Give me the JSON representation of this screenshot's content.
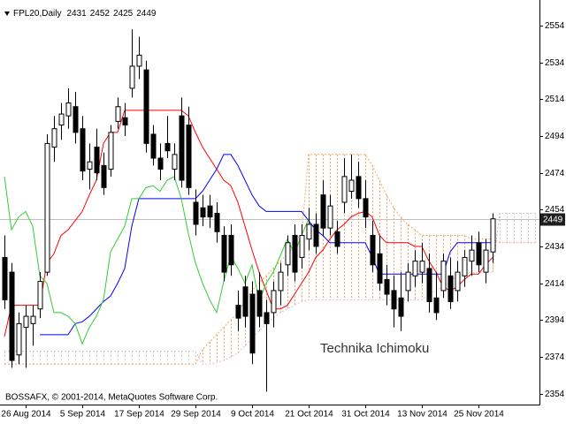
{
  "chart_data": {
    "type": "candlestick",
    "symbol": "FPL20,Daily",
    "annotation": "Technika Ichimoku",
    "copyright": "BOSSAFX, © 2001-2014, MetaQuotes Software Corp.",
    "categories": [
      null,
      null,
      null,
      "26 Aug 2014",
      null,
      null,
      null,
      null,
      null,
      null,
      null,
      "5 Sep 2014",
      null,
      null,
      null,
      null,
      null,
      null,
      null,
      "17 Sep 2014",
      null,
      null,
      null,
      null,
      null,
      null,
      null,
      "29 Sep 2014",
      null,
      null,
      null,
      null,
      null,
      null,
      null,
      "9 Oct 2014",
      null,
      null,
      null,
      null,
      null,
      null,
      null,
      "21 Oct 2014",
      null,
      null,
      null,
      null,
      null,
      null,
      null,
      "31 Oct 2014",
      null,
      null,
      null,
      null,
      null,
      null,
      null,
      "13 Nov 2014",
      null,
      null,
      null,
      null,
      null,
      null,
      null,
      "25 Nov 2014",
      null,
      null,
      null,
      null,
      null,
      null,
      null,
      null
    ],
    "open": [
      2428,
      2420,
      2375,
      2390,
      2392,
      2400,
      2420,
      2488,
      2500,
      2505,
      2510,
      2498,
      2476,
      2488,
      2478,
      2476,
      2502,
      2504,
      2520,
      2532,
      2530,
      2495,
      2482,
      2490,
      2476,
      2505,
      2500,
      2458,
      2455,
      2456,
      2452,
      2440,
      2440,
      2402,
      2412,
      2408,
      2410,
      2398,
      2398,
      2410,
      2424,
      2440,
      2428,
      2438,
      2446,
      2462,
      2444,
      2442,
      2458,
      2464,
      2472,
      2460,
      2440,
      2430,
      2416,
      2410,
      2406,
      2410,
      2418,
      2420,
      2422,
      2406,
      2410,
      2418,
      2410,
      2418,
      2426,
      2436,
      2420,
      2431,
      null,
      null,
      null,
      null,
      null,
      null
    ],
    "high": [
      2440,
      2425,
      2398,
      2402,
      2402,
      2420,
      2495,
      2505,
      2512,
      2520,
      2518,
      2505,
      2490,
      2498,
      2485,
      2500,
      2515,
      2512,
      2552,
      2548,
      2535,
      2500,
      2490,
      2505,
      2490,
      2515,
      2510,
      2465,
      2462,
      2462,
      2458,
      2445,
      2446,
      2410,
      2418,
      2415,
      2420,
      2405,
      2415,
      2425,
      2440,
      2446,
      2446,
      2455,
      2452,
      2470,
      2462,
      2448,
      2482,
      2484,
      2480,
      2470,
      2448,
      2440,
      2424,
      2418,
      2420,
      2425,
      2432,
      2436,
      2430,
      2420,
      2430,
      2428,
      2426,
      2432,
      2440,
      2442,
      2438,
      2452,
      null,
      null,
      null,
      null,
      null,
      null
    ],
    "low": [
      2400,
      2368,
      2370,
      2368,
      2380,
      2395,
      2418,
      2480,
      2492,
      2498,
      2490,
      2470,
      2465,
      2470,
      2462,
      2472,
      2498,
      2494,
      2515,
      2525,
      2485,
      2478,
      2470,
      2482,
      2470,
      2466,
      2462,
      2440,
      2445,
      2444,
      2436,
      2415,
      2418,
      2388,
      2390,
      2370,
      2390,
      2355,
      2390,
      2402,
      2418,
      2415,
      2422,
      2432,
      2430,
      2440,
      2440,
      2430,
      2452,
      2460,
      2455,
      2444,
      2420,
      2410,
      2402,
      2390,
      2388,
      2404,
      2412,
      2414,
      2398,
      2394,
      2406,
      2400,
      2404,
      2412,
      2418,
      2420,
      2414,
      2425,
      null,
      null,
      null,
      null,
      null,
      null
    ],
    "close": [
      2405,
      2372,
      2392,
      2396,
      2396,
      2415,
      2490,
      2498,
      2506,
      2512,
      2496,
      2475,
      2480,
      2474,
      2466,
      2496,
      2510,
      2500,
      2532,
      2538,
      2490,
      2482,
      2476,
      2486,
      2484,
      2470,
      2466,
      2446,
      2450,
      2450,
      2442,
      2420,
      2424,
      2395,
      2396,
      2376,
      2396,
      2392,
      2410,
      2420,
      2436,
      2420,
      2440,
      2446,
      2434,
      2444,
      2456,
      2434,
      2472,
      2470,
      2460,
      2450,
      2424,
      2414,
      2408,
      2400,
      2396,
      2420,
      2426,
      2426,
      2404,
      2398,
      2426,
      2404,
      2420,
      2428,
      2432,
      2424,
      2432,
      2449,
      null,
      null,
      null,
      null,
      null,
      null
    ],
    "up_color": "#ffffff",
    "down_color": "#000000",
    "bid_color": "#c0c0c0",
    "lines": [
      {
        "color": "#ff0000",
        "values": [
          2385,
          2402,
          2402,
          2402,
          2402,
          2402,
          2425,
          2430,
          2440,
          2443,
          2448,
          2453,
          2462,
          2470,
          2490,
          2496,
          2496,
          2508,
          2508,
          2508,
          2508,
          2508,
          2508,
          2508,
          2508,
          2508,
          2505,
          2496,
          2488,
          2482,
          2476,
          2470,
          2467,
          2458,
          2445,
          2432,
          2420,
          2410,
          2400,
          2400,
          2402,
          2408,
          2414,
          2420,
          2428,
          2432,
          2438,
          2443,
          2446,
          2450,
          2452,
          2453,
          2450,
          2440,
          2436,
          2436,
          2436,
          2436,
          2434,
          2434,
          2426,
          2420,
          2412,
          2410,
          2412,
          2416,
          2419,
          2419,
          2424,
          2428,
          null,
          null,
          null,
          null,
          null,
          null
        ]
      },
      {
        "color": "#0000ff",
        "values": [
          null,
          null,
          null,
          null,
          null,
          2386,
          2386,
          2386,
          2386,
          2386,
          2392,
          2393,
          2396,
          2400,
          2404,
          2407,
          2414,
          2422,
          2445,
          2460,
          2460,
          2460,
          2460,
          2460,
          2460,
          2460,
          2460,
          2460,
          2464,
          2470,
          2476,
          2484,
          2484,
          2478,
          2470,
          2462,
          2456,
          2453,
          2453,
          2453,
          2453,
          2453,
          2453,
          2448,
          2443,
          2440,
          2436,
          2436,
          2436,
          2436,
          2436,
          2436,
          2428,
          2419,
          2419,
          2419,
          2419,
          2419,
          2419,
          2419,
          2419,
          2419,
          2419,
          2431,
          2436,
          2436,
          2436,
          2436,
          2436,
          2436,
          null,
          null,
          null,
          null,
          null,
          null
        ]
      },
      {
        "color": "#32cd32",
        "values": [
          2472,
          2443,
          2450,
          2453,
          2445,
          2418,
          2414,
          2398,
          2398,
          2396,
          2392,
          2381,
          2390,
          2396,
          2405,
          2431,
          2438,
          2445,
          2460,
          2460,
          2466,
          2467,
          2464,
          2470,
          2472,
          2460,
          2441,
          2425,
          2414,
          2405,
          2398,
          2415,
          2429,
          2422,
          2414,
          2424,
          2404,
          2414,
          2420,
          2429,
          2438,
          2430,
          2440,
          2449,
          null,
          null,
          null,
          null,
          null,
          null,
          null,
          null,
          null,
          null,
          null,
          null,
          null,
          null,
          null,
          null,
          null,
          null,
          null,
          null,
          null,
          null,
          null,
          null,
          null,
          null,
          null,
          null,
          null,
          null,
          null,
          null
        ]
      }
    ],
    "cloud": {
      "span_a": {
        "color": "#f4a460",
        "values": [
          2370,
          2370,
          2370,
          2370,
          2370,
          2370,
          2370,
          2370,
          2370,
          2370,
          2370,
          2370,
          2370,
          2370,
          2370,
          2370,
          2370,
          2370,
          2370,
          2370,
          2370,
          2370,
          2370,
          2370,
          2370,
          2370,
          2370,
          2370,
          2378,
          2382,
          2386,
          2390,
          2394,
          2398,
          2404,
          2410,
          2414,
          2418,
          2422,
          2426,
          2430,
          2434,
          2440,
          2484,
          2484,
          2484,
          2484,
          2484,
          2484,
          2484,
          2484,
          2484,
          2478,
          2470,
          2462,
          2455,
          2450,
          2446,
          2443,
          2440,
          2440,
          2440,
          2440,
          2440,
          2440,
          2440,
          2438,
          2438,
          2438,
          2438,
          2436,
          2436,
          2436,
          2436,
          2436,
          2436
        ]
      },
      "span_b": {
        "color": "#d8bfd8",
        "values": [
          2377,
          2377,
          2377,
          2377,
          2377,
          2377,
          2377,
          2377,
          2377,
          2377,
          2377,
          2377,
          2377,
          2377,
          2377,
          2377,
          2377,
          2377,
          2377,
          2377,
          2377,
          2377,
          2377,
          2377,
          2377,
          2377,
          2377,
          2377,
          2370,
          2370,
          2371,
          2372,
          2374,
          2376,
          2380,
          2384,
          2388,
          2392,
          2395,
          2398,
          2400,
          2402,
          2404,
          2405,
          2405,
          2405,
          2405,
          2405,
          2405,
          2405,
          2405,
          2405,
          2405,
          2405,
          2405,
          2405,
          2405,
          2405,
          2405,
          2405,
          2408,
          2410,
          2412,
          2415,
          2418,
          2420,
          2420,
          2420,
          2420,
          2420,
          2452,
          2452,
          2452,
          2452,
          2452,
          2452
        ]
      }
    },
    "ylim": [
      2348,
      2568
    ],
    "yticks": [
      2354,
      2374,
      2394,
      2414,
      2434,
      2454,
      2474,
      2494,
      2514,
      2534,
      2554
    ]
  }
}
